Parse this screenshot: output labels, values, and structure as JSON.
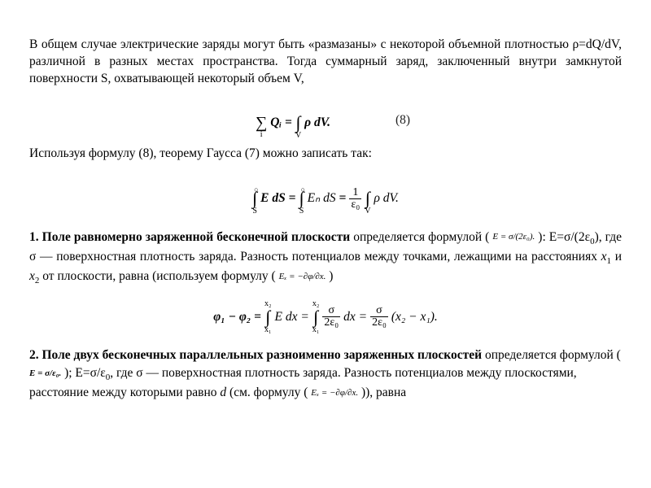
{
  "intro": {
    "text": "В общем случае электрические заряды могут быть «размазаны» с некоторой объемной плотностью ρ=dQ/dV, различной в разных местах пространства. Тогда суммарный заряд, заключенный внутри замкнутой поверхности S, охватывающей некоторый объем V,"
  },
  "eq8": {
    "num": "(8)",
    "sum_lower": "i",
    "Q": "Qᵢ",
    "int_lower": "V",
    "rhs": "ρ dV."
  },
  "after8": {
    "text": "Используя формулу (8), теорему Гаусса (7) можно записать так:"
  },
  "eqGauss": {
    "oint1_lower": "S",
    "term1": "E dS",
    "oint2_lower": "S",
    "term2": "Eₙ dS",
    "frac_num": "1",
    "frac_den": "ε₀",
    "int_lower": "V",
    "term3": "ρ dV."
  },
  "sec1": {
    "head_num": "1. ",
    "head": "Поле равномерно заряженной бесконечной плоскости",
    "tail1": " определяется формулой ( ",
    "inline1": "E = σ/(2ε₀).",
    "tail2": " ): E=σ/(2ε",
    "sub0_a": "0",
    "tail3": "), где σ — поверхностная плотность заряда. Разность потенциалов между точками, лежащими на расстояниях ",
    "x1": "x",
    "x1s": "1",
    "and": " и ",
    "x2": "x",
    "x2s": "2",
    "tail4": " от плоскости, равна (используем формулу ( ",
    "inline2": "Eₓ = −∂φ/∂x.",
    "tail5": " )"
  },
  "eqPhi": {
    "lhs": "φ₁ − φ₂ =",
    "int1_up": "x₂",
    "int1_lo": "x₁",
    "mid1": "E dx =",
    "int2_up": "x₂",
    "int2_lo": "x₁",
    "frac2_num": "σ",
    "frac2_den": "2ε₀",
    "mid2": "dx =",
    "frac3_num": "σ",
    "frac3_den": "2ε₀",
    "rhs": "(x₂ − x₁)."
  },
  "sec2": {
    "head_num": "2. ",
    "head": "Поле двух бесконечных параллельных разноименно заряженных плоскостей",
    "tail1": " определяется формулой ( ",
    "inline1": "E = σ/ε₀.",
    "tail2": " ); E=σ/ε",
    "sub0_a": "0",
    "tail3": ", где σ — поверхностная плотность заряда. Разность потенциалов между плоскостями, расстояние между которыми равно ",
    "d": "d",
    "tail4": " (см. формулу ( ",
    "inline2": "Eₓ = −∂φ/∂x.",
    "tail5": " )),  равна"
  }
}
